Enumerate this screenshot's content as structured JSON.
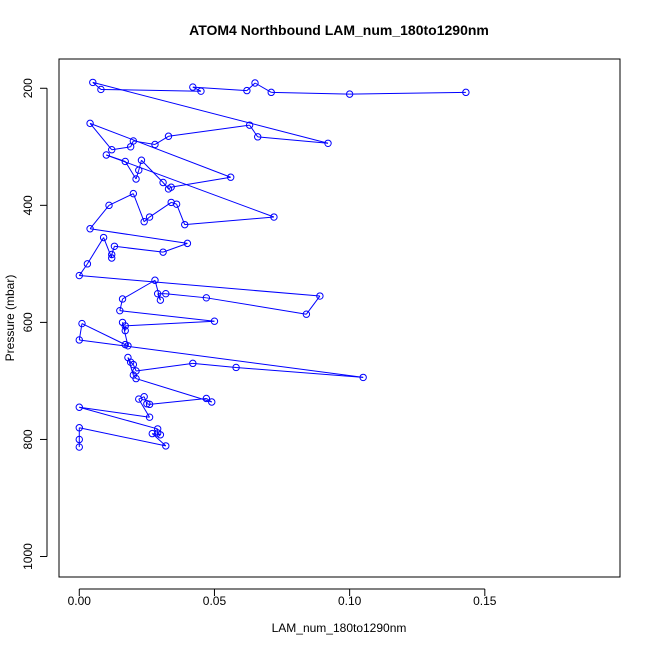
{
  "chart_data": {
    "type": "line",
    "title": "ATOM4 Northbound LAM_num_180to1290nm",
    "xlabel": "LAM_num_180to1290nm",
    "ylabel": "Pressure (mbar)",
    "xlim": [
      -0.0075,
      0.2
    ],
    "ylim": [
      1035,
      150
    ],
    "y_inverted": true,
    "x_ticks": [
      0.0,
      0.05,
      0.1,
      0.15
    ],
    "x_tick_labels": [
      "0.00",
      "0.05",
      "0.10",
      "0.15"
    ],
    "y_ticks": [
      200,
      400,
      600,
      800,
      1000
    ],
    "y_tick_labels": [
      "200",
      "400",
      "600",
      "800",
      "1000"
    ],
    "grid": false,
    "legend": "none",
    "series": [
      {
        "marker": "open-circle",
        "color": "#0000ff",
        "points": [
          [
            0.143,
            207
          ],
          [
            0.1,
            210
          ],
          [
            0.071,
            207
          ],
          [
            0.065,
            191
          ],
          [
            0.062,
            204
          ],
          [
            0.042,
            198
          ],
          [
            0.045,
            205
          ],
          [
            0.008,
            202
          ],
          [
            0.005,
            190
          ],
          [
            0.092,
            294
          ],
          [
            0.066,
            283
          ],
          [
            0.063,
            263
          ],
          [
            0.033,
            282
          ],
          [
            0.028,
            296
          ],
          [
            0.02,
            290
          ],
          [
            0.019,
            300
          ],
          [
            0.012,
            305
          ],
          [
            0.004,
            260
          ],
          [
            0.056,
            352
          ],
          [
            0.034,
            369
          ],
          [
            0.033,
            372
          ],
          [
            0.031,
            361
          ],
          [
            0.023,
            323
          ],
          [
            0.022,
            340
          ],
          [
            0.021,
            355
          ],
          [
            0.017,
            325
          ],
          [
            0.01,
            314
          ],
          [
            0.072,
            420
          ],
          [
            0.039,
            433
          ],
          [
            0.036,
            398
          ],
          [
            0.034,
            395
          ],
          [
            0.026,
            420
          ],
          [
            0.024,
            428
          ],
          [
            0.02,
            380
          ],
          [
            0.011,
            400
          ],
          [
            0.004,
            440
          ],
          [
            0.04,
            465
          ],
          [
            0.031,
            480
          ],
          [
            0.013,
            470
          ],
          [
            0.012,
            484
          ],
          [
            0.012,
            490
          ],
          [
            0.009,
            455
          ],
          [
            0.003,
            500
          ],
          [
            0.0,
            520
          ],
          [
            0.089,
            555
          ],
          [
            0.084,
            586
          ],
          [
            0.047,
            558
          ],
          [
            0.032,
            551
          ],
          [
            0.029,
            551
          ],
          [
            0.03,
            562
          ],
          [
            0.028,
            528
          ],
          [
            0.016,
            560
          ],
          [
            0.015,
            580
          ],
          [
            0.05,
            598
          ],
          [
            0.017,
            606
          ],
          [
            0.017,
            614
          ],
          [
            0.016,
            600
          ],
          [
            0.018,
            640
          ],
          [
            0.017,
            638
          ],
          [
            0.001,
            602
          ],
          [
            0.0,
            630
          ],
          [
            0.105,
            694
          ],
          [
            0.058,
            677
          ],
          [
            0.042,
            670
          ],
          [
            0.021,
            683
          ],
          [
            0.02,
            672
          ],
          [
            0.019,
            668
          ],
          [
            0.018,
            660
          ],
          [
            0.02,
            690
          ],
          [
            0.021,
            696
          ],
          [
            0.049,
            736
          ],
          [
            0.047,
            730
          ],
          [
            0.026,
            740
          ],
          [
            0.025,
            739
          ],
          [
            0.024,
            727
          ],
          [
            0.022,
            731
          ],
          [
            0.026,
            762
          ],
          [
            0.0,
            745
          ],
          [
            0.029,
            782
          ],
          [
            0.029,
            789
          ],
          [
            0.03,
            792
          ],
          [
            0.027,
            790
          ],
          [
            0.032,
            811
          ],
          [
            0.0,
            780
          ],
          [
            0.0,
            800
          ],
          [
            0.0,
            813
          ]
        ]
      }
    ]
  }
}
